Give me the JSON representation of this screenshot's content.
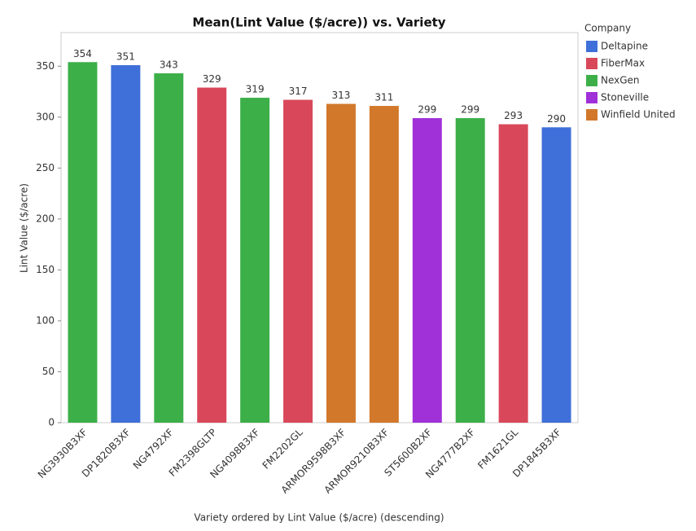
{
  "chart_data": {
    "type": "bar",
    "title": "Mean(Lint Value ($/acre)) vs. Variety",
    "x_label": "Variety ordered by Lint Value ($/acre) (descending)",
    "y_label": "Lint Value ($/acre)",
    "legend_title": "Company",
    "categories": [
      "NG3930B3XF",
      "DP1820B3XF",
      "NG4792XF",
      "FM2398GLTP",
      "NG4098B3XF",
      "FM2202GL",
      "ARMOR9598B3XF",
      "ARMOR9210B3XF",
      "ST5600B2XF",
      "NG4777B2XF",
      "FM1621GL",
      "DP1845B3XF"
    ],
    "series": [
      {
        "name": "Deltapine",
        "color": "#3f6fd8",
        "values": [
          null,
          351,
          null,
          null,
          null,
          null,
          null,
          null,
          null,
          null,
          null,
          290
        ]
      },
      {
        "name": "FiberMax",
        "color": "#d9485a",
        "values": [
          null,
          null,
          null,
          329,
          null,
          317,
          null,
          null,
          null,
          null,
          293,
          null
        ]
      },
      {
        "name": "NexGen",
        "color": "#3daf49",
        "values": [
          354,
          null,
          343,
          null,
          319,
          null,
          null,
          null,
          null,
          299,
          null,
          null
        ]
      },
      {
        "name": "Stoneville",
        "color": "#a030d8",
        "values": [
          null,
          null,
          null,
          null,
          null,
          null,
          null,
          null,
          299,
          null,
          null,
          null
        ]
      },
      {
        "name": "Winfield United",
        "color": "#d2782b",
        "values": [
          null,
          null,
          null,
          null,
          null,
          null,
          313,
          311,
          null,
          null,
          null,
          null
        ]
      }
    ],
    "ylim": [
      0,
      383
    ],
    "yticks": [
      0,
      50,
      100,
      150,
      200,
      250,
      300,
      350
    ],
    "grid": false
  }
}
